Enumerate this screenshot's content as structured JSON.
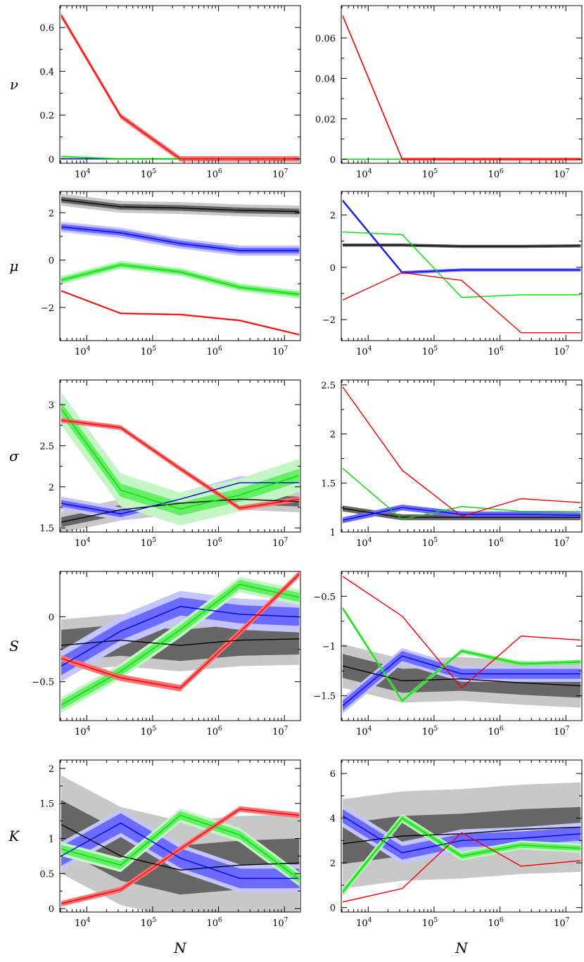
{
  "chart_data": {
    "type": "line",
    "x": [
      4096,
      32768,
      262144,
      2097152,
      16777216
    ],
    "x_scale": "log",
    "x_range": [
      3900,
      17500000
    ],
    "x_ticks": [
      {
        "base": "10",
        "exp": "4",
        "value": 10000
      },
      {
        "base": "10",
        "exp": "5",
        "value": 100000
      },
      {
        "base": "10",
        "exp": "6",
        "value": 1000000
      },
      {
        "base": "10",
        "exp": "7",
        "value": 10000000
      }
    ],
    "xlabel": "N",
    "series_colors": {
      "black": "#000000",
      "blue": "#0000e6",
      "green": "#00dd00",
      "red": "#ee0000",
      "band_dark": "#666666",
      "band_light": "#c8c8c8",
      "band_blue_dark": "#6b6bff",
      "band_blue_light": "#c4c4ff",
      "band_green_dark": "#66ee66",
      "band_green_light": "#c4f5c4",
      "band_red_dark": "#ff7070",
      "band_red_light": "#ffc8c8"
    },
    "rows": [
      {
        "ylabel": "ν",
        "panels": [
          {
            "ylim": [
              -0.02,
              0.7
            ],
            "yticks": [
              0,
              0.2,
              0.4,
              0.6
            ],
            "ytick_labels": [
              "0",
              "0.2",
              "0.4",
              "0.6"
            ],
            "series": [
              {
                "color": "black",
                "values": [
                  0,
                  0,
                  0,
                  0,
                  0
                ]
              },
              {
                "color": "blue",
                "values": [
                  0,
                  0,
                  0,
                  0,
                  0
                ]
              },
              {
                "color": "green",
                "values": [
                  0.01,
                  0,
                  0,
                  0,
                  0
                ],
                "band": 0.004
              },
              {
                "color": "red",
                "values": [
                  0.655,
                  0.195,
                  0,
                  0,
                  0
                ],
                "band": 0.012
              }
            ]
          },
          {
            "ylim": [
              -0.002,
              0.076
            ],
            "yticks": [
              0,
              0.02,
              0.04,
              0.06
            ],
            "ytick_labels": [
              "0",
              "0.02",
              "0.04",
              "0.06"
            ],
            "series": [
              {
                "color": "black",
                "values": [
                  0,
                  0,
                  0,
                  0,
                  0
                ]
              },
              {
                "color": "blue",
                "values": [
                  0,
                  0,
                  0,
                  0,
                  0
                ]
              },
              {
                "color": "green",
                "values": [
                  0,
                  0,
                  0,
                  0,
                  0
                ]
              },
              {
                "color": "red",
                "values": [
                  0.071,
                  0,
                  0,
                  0,
                  0
                ],
                "band": 0.0008
              }
            ]
          }
        ]
      },
      {
        "ylabel": "μ",
        "panels": [
          {
            "ylim": [
              -3.4,
              2.9
            ],
            "yticks": [
              -2,
              0,
              2
            ],
            "ytick_labels": [
              "−2",
              "0",
              "2"
            ],
            "series": [
              {
                "color": "black",
                "values": [
                  2.55,
                  2.25,
                  2.2,
                  2.1,
                  2.05
                ],
                "band": 0.12,
                "outer": 0.25
              },
              {
                "color": "blue",
                "values": [
                  1.4,
                  1.15,
                  0.7,
                  0.4,
                  0.4
                ],
                "band": 0.12,
                "outer": 0.22
              },
              {
                "color": "green",
                "values": [
                  -0.85,
                  -0.2,
                  -0.5,
                  -1.15,
                  -1.45
                ],
                "band": 0.1,
                "outer": 0.18
              },
              {
                "color": "red",
                "values": [
                  -1.3,
                  -2.25,
                  -2.3,
                  -2.55,
                  -3.15
                ],
                "band": 0.04
              }
            ]
          },
          {
            "ylim": [
              -2.8,
              2.9
            ],
            "yticks": [
              -2,
              0,
              2
            ],
            "ytick_labels": [
              "−2",
              "0",
              "2"
            ],
            "series": [
              {
                "color": "black",
                "values": [
                  0.85,
                  0.85,
                  0.8,
                  0.8,
                  0.82
                ],
                "band": 0.06
              },
              {
                "color": "blue",
                "values": [
                  2.55,
                  -0.2,
                  -0.1,
                  -0.1,
                  -0.1
                ],
                "band": 0.06
              },
              {
                "color": "green",
                "values": [
                  1.35,
                  1.25,
                  -1.15,
                  -1.05,
                  -1.05
                ]
              },
              {
                "color": "red",
                "values": [
                  -1.25,
                  -0.2,
                  -0.5,
                  -2.5,
                  -2.5
                ]
              }
            ]
          }
        ]
      },
      {
        "ylabel": "σ",
        "panels": [
          {
            "ylim": [
              1.45,
              3.3
            ],
            "yticks": [
              1.5,
              2,
              2.5,
              3
            ],
            "ytick_labels": [
              "1.5",
              "2",
              "2.5",
              "3"
            ],
            "series": [
              {
                "color": "black",
                "values": [
                  1.57,
                  1.72,
                  1.8,
                  1.85,
                  1.82
                ],
                "band": 0.06,
                "outer": 0.13
              },
              {
                "color": "blue",
                "values": [
                  1.8,
                  1.67,
                  1.85,
                  2.05,
                  2.05
                ],
                "band": 0.04,
                "outer": 0.08
              },
              {
                "color": "green",
                "values": [
                  2.95,
                  1.96,
                  1.73,
                  1.9,
                  2.14
                ],
                "band": 0.08,
                "outer": 0.2
              },
              {
                "color": "red",
                "values": [
                  2.81,
                  2.72,
                  2.22,
                  1.74,
                  1.85
                ],
                "band": 0.03
              }
            ]
          },
          {
            "ylim": [
              1.0,
              2.55
            ],
            "yticks": [
              1,
              1.5,
              2,
              2.5
            ],
            "ytick_labels": [
              "1",
              "1.5",
              "2",
              "2.5"
            ],
            "series": [
              {
                "color": "black",
                "values": [
                  1.24,
                  1.15,
                  1.15,
                  1.15,
                  1.15
                ],
                "band": 0.03
              },
              {
                "color": "blue",
                "values": [
                  1.12,
                  1.25,
                  1.18,
                  1.18,
                  1.17
                ],
                "band": 0.03
              },
              {
                "color": "green",
                "values": [
                  1.65,
                  1.13,
                  1.26,
                  1.21,
                  1.21
                ]
              },
              {
                "color": "red",
                "values": [
                  2.48,
                  1.63,
                  1.16,
                  1.34,
                  1.3
                ]
              }
            ]
          }
        ]
      },
      {
        "ylabel": "S",
        "panels": [
          {
            "ylim": [
              -0.8,
              0.35
            ],
            "yticks": [
              -0.5,
              0
            ],
            "ytick_labels": [
              "−0.5",
              "0"
            ],
            "series": [
              {
                "color": "black",
                "values": [
                  -0.22,
                  -0.18,
                  -0.22,
                  -0.18,
                  -0.17
                ],
                "band": 0.12,
                "outer": 0.2
              },
              {
                "color": "blue",
                "values": [
                  -0.38,
                  -0.11,
                  0.08,
                  0.02,
                  0.0
                ],
                "band": 0.07,
                "outer": 0.12
              },
              {
                "color": "green",
                "values": [
                  -0.68,
                  -0.42,
                  -0.1,
                  0.25,
                  0.15
                ],
                "band": 0.035,
                "outer": 0.06
              },
              {
                "color": "red",
                "values": [
                  -0.32,
                  -0.47,
                  -0.55,
                  -0.12,
                  0.33
                ],
                "band": 0.025
              }
            ]
          },
          {
            "ylim": [
              -1.75,
              -0.25
            ],
            "yticks": [
              -1.5,
              -1,
              -0.5
            ],
            "ytick_labels": [
              "−1.5",
              "−1",
              "−0.5"
            ],
            "series": [
              {
                "color": "black",
                "values": [
                  -1.2,
                  -1.35,
                  -1.33,
                  -1.37,
                  -1.4
                ],
                "band": 0.12,
                "outer": 0.22
              },
              {
                "color": "blue",
                "values": [
                  -1.6,
                  -1.1,
                  -1.28,
                  -1.28,
                  -1.28
                ],
                "band": 0.05,
                "outer": 0.08
              },
              {
                "color": "green",
                "values": [
                  -0.62,
                  -1.55,
                  -1.05,
                  -1.18,
                  -1.16
                ],
                "band": 0.02
              },
              {
                "color": "red",
                "values": [
                  -0.3,
                  -0.7,
                  -1.42,
                  -0.9,
                  -0.94
                ]
              }
            ]
          }
        ]
      },
      {
        "ylabel": "K",
        "panels": [
          {
            "ylim": [
              -0.05,
              2.12
            ],
            "yticks": [
              0,
              0.5,
              1,
              1.5,
              2
            ],
            "ytick_labels": [
              "0",
              "0.5",
              "1",
              "1.5",
              "2"
            ],
            "series": [
              {
                "color": "black",
                "values": [
                  1.2,
                  0.75,
                  0.55,
                  0.62,
                  0.65
                ],
                "band": 0.35,
                "outer": 0.7
              },
              {
                "color": "blue",
                "values": [
                  0.75,
                  1.22,
                  0.72,
                  0.43,
                  0.43
                ],
                "band": 0.14,
                "outer": 0.2
              },
              {
                "color": "green",
                "values": [
                  0.85,
                  0.62,
                  1.33,
                  1.05,
                  0.42
                ],
                "band": 0.06,
                "outer": 0.1
              },
              {
                "color": "red",
                "values": [
                  0.07,
                  0.27,
                  0.85,
                  1.42,
                  1.33
                ],
                "band": 0.04
              }
            ]
          },
          {
            "ylim": [
              -0.2,
              6.6
            ],
            "yticks": [
              0,
              2,
              4,
              6
            ],
            "ytick_labels": [
              "0",
              "2",
              "4",
              "6"
            ],
            "series": [
              {
                "color": "black",
                "values": [
                  2.85,
                  3.2,
                  3.3,
                  3.5,
                  3.6
                ],
                "band": 0.9,
                "outer": 2.0
              },
              {
                "color": "blue",
                "values": [
                  4.1,
                  2.45,
                  3.0,
                  3.1,
                  3.3
                ],
                "band": 0.3,
                "outer": 0.5
              },
              {
                "color": "green",
                "values": [
                  0.7,
                  4.0,
                  2.3,
                  2.8,
                  2.65
                ],
                "band": 0.12,
                "outer": 0.2
              },
              {
                "color": "red",
                "values": [
                  0.25,
                  0.85,
                  3.35,
                  1.85,
                  2.1
                ]
              }
            ]
          }
        ]
      }
    ]
  }
}
